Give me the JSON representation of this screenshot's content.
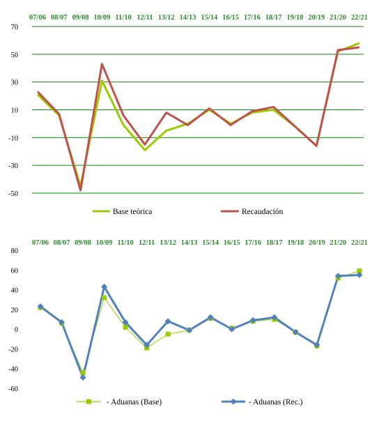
{
  "chart_data": [
    {
      "type": "line",
      "categories": [
        "07/06",
        "08/07",
        "09/08",
        "10/09",
        "11/10",
        "12/11",
        "13/12",
        "14/13",
        "15/14",
        "16/15",
        "17/16",
        "18/17",
        "19/18",
        "20/19",
        "21/20",
        "22/21"
      ],
      "ylim": [
        -50,
        70
      ],
      "yticks": [
        -50,
        -30,
        -10,
        10,
        30,
        50,
        70
      ],
      "grid": "horizontal",
      "legend": "bottom",
      "series": [
        {
          "name": "Base teórica",
          "color": "#99cc00",
          "values": [
            21,
            6,
            -45,
            31,
            -1,
            -19,
            -5,
            0,
            10,
            0,
            8,
            10,
            -2,
            -16,
            52,
            58
          ]
        },
        {
          "name": "Recaudación",
          "color": "#c0504d",
          "values": [
            23,
            7,
            -48,
            43,
            6,
            -15,
            8,
            -1,
            11,
            -1,
            9,
            12,
            -2,
            -16,
            53,
            55
          ]
        }
      ]
    },
    {
      "type": "line",
      "categories": [
        "07/06",
        "08/07",
        "09/08",
        "10/09",
        "11/10",
        "12/11",
        "13/12",
        "14/13",
        "15/14",
        "16/15",
        "17/16",
        "18/17",
        "19/18",
        "20/19",
        "21/20",
        "22/21"
      ],
      "ylim": [
        -60,
        80
      ],
      "yticks": [
        -60,
        -40,
        -20,
        0,
        20,
        40,
        60,
        80
      ],
      "grid": "none",
      "legend": "bottom",
      "series": [
        {
          "name": "- Aduanas (Base)",
          "color": "#99cc00",
          "marker": "square",
          "values": [
            22,
            6,
            -44,
            32,
            2,
            -19,
            -5,
            -1,
            11,
            1,
            8,
            10,
            -3,
            -17,
            52,
            59
          ]
        },
        {
          "name": "- Aduanas (Rec.)",
          "color": "#4f81bd",
          "marker": "diamond",
          "values": [
            23,
            7,
            -49,
            43,
            7,
            -16,
            8,
            -1,
            12,
            0,
            9,
            12,
            -3,
            -16,
            54,
            55
          ]
        }
      ]
    }
  ]
}
